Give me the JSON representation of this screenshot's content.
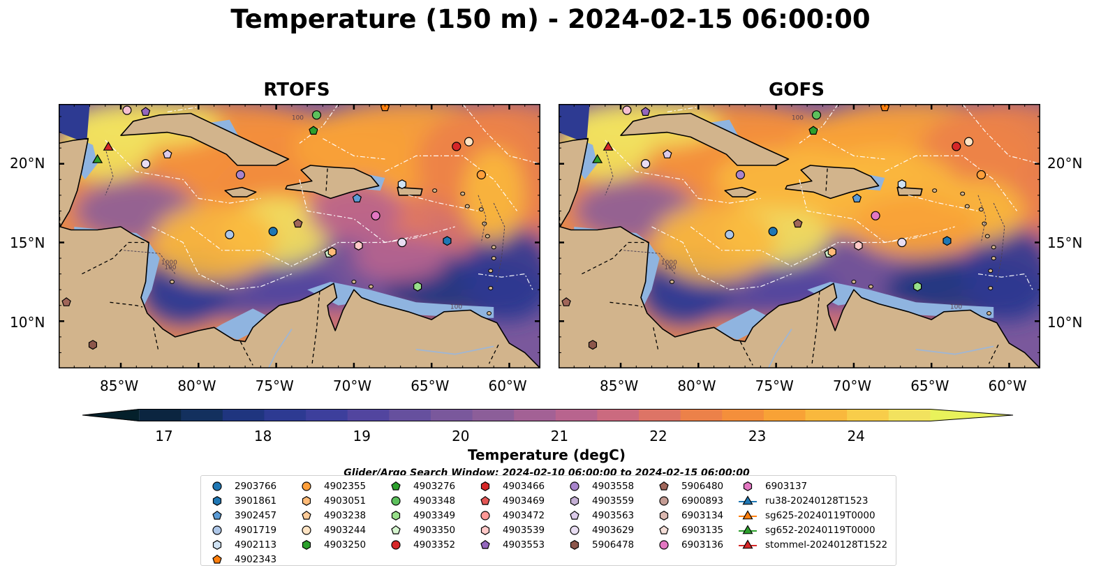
{
  "title": "Temperature (150 m) - 2024-02-15 06:00:00",
  "panels": [
    {
      "id": "rtofs",
      "title": "RTOFS"
    },
    {
      "id": "gofs",
      "title": "GOFS"
    }
  ],
  "lat_ticks": [
    "20°N",
    "15°N",
    "10°N"
  ],
  "lon_ticks": [
    "85°W",
    "80°W",
    "75°W",
    "70°W",
    "65°W",
    "60°W"
  ],
  "contour_labels": [
    "100",
    "1000",
    "100",
    "100"
  ],
  "colorbar": {
    "label": "Temperature (degC)",
    "ticks": [
      "17",
      "18",
      "19",
      "20",
      "21",
      "22",
      "23",
      "24"
    ],
    "min": 16.75,
    "max": 24.75,
    "step": 0.5,
    "colors": [
      "#04202b",
      "#0b2540",
      "#13305e",
      "#1f357f",
      "#2d3a92",
      "#3d3f9c",
      "#52459f",
      "#66509e",
      "#7a589c",
      "#8c5e99",
      "#a36195",
      "#b8648e",
      "#cb6a7f",
      "#dd7466",
      "#ec8149",
      "#f48f3b",
      "#f8a236",
      "#f9b83d",
      "#f8cd4a",
      "#f2e25e",
      "#e9f25b"
    ],
    "extend": "both"
  },
  "search_window": "Glider/Argo Search Window: 2024-02-10 06:00:00 to 2024-02-15 06:00:00",
  "colors": {
    "land": "#d2b48c",
    "shelf": "#8fb4e0",
    "border": "#000000"
  },
  "legend": [
    [
      {
        "label": "2903766",
        "marker": "circle",
        "color": "#1f77b4"
      },
      {
        "label": "3901861",
        "marker": "hexagon",
        "color": "#1f77b4"
      },
      {
        "label": "3902457",
        "marker": "pentagon",
        "color": "#5b9bd5"
      },
      {
        "label": "4901719",
        "marker": "circle",
        "color": "#aec7e8"
      },
      {
        "label": "4902113",
        "marker": "hexagon",
        "color": "#cfe2f3"
      },
      {
        "label": "4902343",
        "marker": "pentagon",
        "color": "#ff7f0e"
      }
    ],
    [
      {
        "label": "4902355",
        "marker": "circle",
        "color": "#ff9f3a"
      },
      {
        "label": "4903051",
        "marker": "hexagon",
        "color": "#ffbb78"
      },
      {
        "label": "4903238",
        "marker": "pentagon",
        "color": "#ffcc99"
      },
      {
        "label": "4903244",
        "marker": "circle",
        "color": "#ffe4c4"
      },
      {
        "label": "4903250",
        "marker": "hexagon",
        "color": "#2ca02c"
      }
    ],
    [
      {
        "label": "4903276",
        "marker": "pentagon",
        "color": "#2ca02c"
      },
      {
        "label": "4903348",
        "marker": "circle",
        "color": "#5cc05c"
      },
      {
        "label": "4903349",
        "marker": "hexagon",
        "color": "#98df8a"
      },
      {
        "label": "4903350",
        "marker": "pentagon",
        "color": "#d5f5cf"
      },
      {
        "label": "4903352",
        "marker": "circle",
        "color": "#d62728"
      }
    ],
    [
      {
        "label": "4903466",
        "marker": "hexagon",
        "color": "#d62728"
      },
      {
        "label": "4903469",
        "marker": "pentagon",
        "color": "#e45756"
      },
      {
        "label": "4903472",
        "marker": "circle",
        "color": "#ff9896"
      },
      {
        "label": "4903539",
        "marker": "hexagon",
        "color": "#ffc9c8"
      },
      {
        "label": "4903553",
        "marker": "pentagon",
        "color": "#9467bd"
      }
    ],
    [
      {
        "label": "4903558",
        "marker": "circle",
        "color": "#a884cc"
      },
      {
        "label": "4903559",
        "marker": "hexagon",
        "color": "#c5b0d5"
      },
      {
        "label": "4903563",
        "marker": "pentagon",
        "color": "#dccbea"
      },
      {
        "label": "4903629",
        "marker": "circle",
        "color": "#e8ddf2"
      },
      {
        "label": "5906478",
        "marker": "hexagon",
        "color": "#8c564b"
      }
    ],
    [
      {
        "label": "5906480",
        "marker": "pentagon",
        "color": "#a0665a"
      },
      {
        "label": "6900893",
        "marker": "circle",
        "color": "#c49c94"
      },
      {
        "label": "6903134",
        "marker": "hexagon",
        "color": "#dbb8b0"
      },
      {
        "label": "6903135",
        "marker": "pentagon",
        "color": "#f5dfd9"
      },
      {
        "label": "6903136",
        "marker": "circle",
        "color": "#e377c2"
      }
    ],
    [
      {
        "label": "6903137",
        "marker": "hexagon",
        "color": "#e377c2"
      },
      {
        "label": "ru38-20240128T1523",
        "marker": "triangle-line",
        "color": "#1f77b4"
      },
      {
        "label": "sg625-20240119T0000",
        "marker": "triangle-line",
        "color": "#ff7f0e"
      },
      {
        "label": "sg652-20240119T0000",
        "marker": "triangle-line",
        "color": "#2ca02c"
      },
      {
        "label": "stommel-20240128T1522",
        "marker": "triangle-line",
        "color": "#d62728"
      }
    ]
  ]
}
